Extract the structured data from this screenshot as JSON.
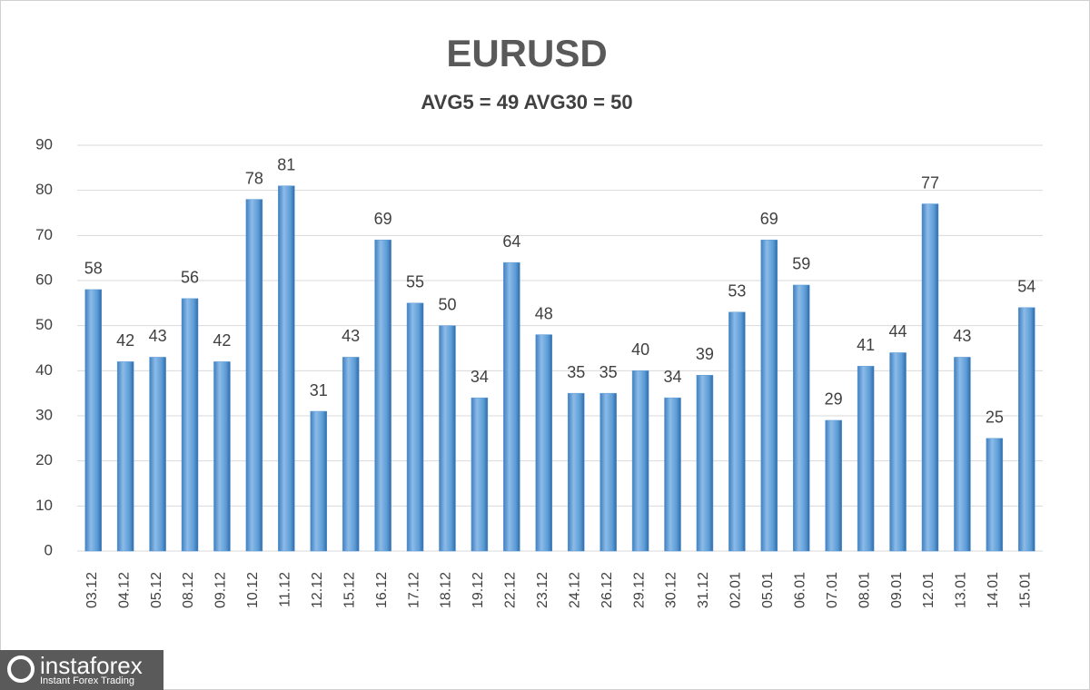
{
  "chart_data": {
    "type": "bar",
    "title": "EURUSD",
    "subtitle": "AVG5 = 49 AVG30 = 50",
    "categories": [
      "03.12",
      "04.12",
      "05.12",
      "08.12",
      "09.12",
      "10.12",
      "11.12",
      "12.12",
      "15.12",
      "16.12",
      "17.12",
      "18.12",
      "19.12",
      "22.12",
      "23.12",
      "24.12",
      "26.12",
      "29.12",
      "30.12",
      "31.12",
      "02.01",
      "05.01",
      "06.01",
      "07.01",
      "08.01",
      "09.01",
      "12.01",
      "13.01",
      "14.01",
      "15.01"
    ],
    "values": [
      58,
      42,
      43,
      56,
      42,
      78,
      81,
      31,
      43,
      69,
      55,
      50,
      34,
      64,
      48,
      35,
      35,
      40,
      34,
      39,
      53,
      69,
      59,
      29,
      41,
      44,
      77,
      43,
      25,
      54
    ],
    "color": "#5b9bd5",
    "ylim": [
      0,
      90
    ],
    "yticks": [
      0,
      10,
      20,
      30,
      40,
      50,
      60,
      70,
      80,
      90
    ],
    "grid": true
  },
  "logo": {
    "name": "instaforex",
    "tagline": "Instant Forex Trading"
  }
}
